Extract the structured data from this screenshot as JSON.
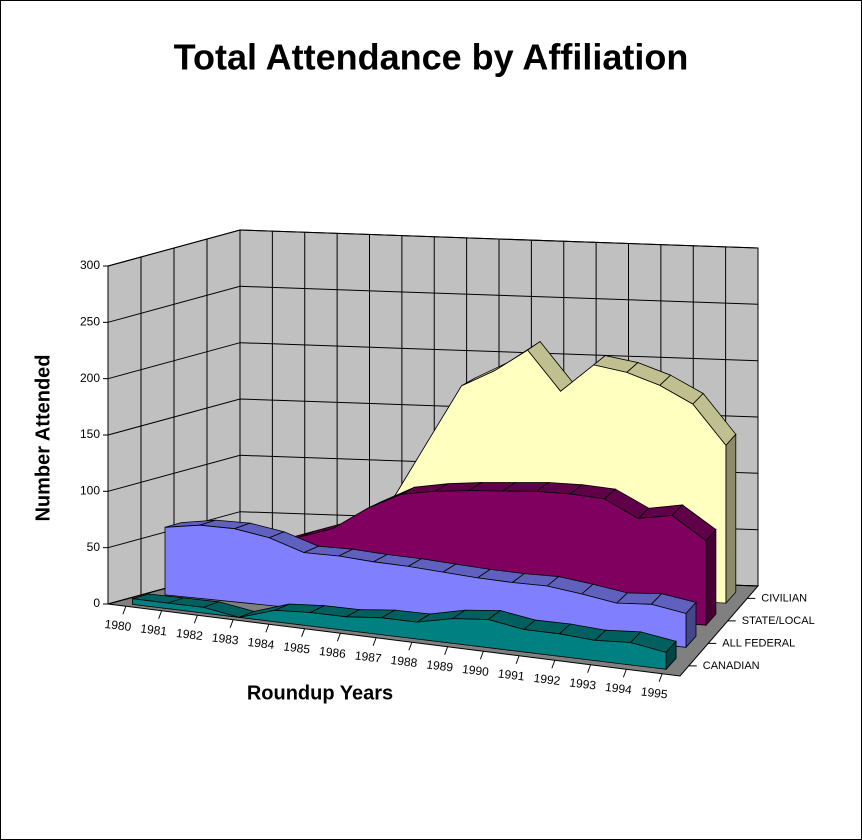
{
  "chart_data": {
    "type": "area3d",
    "title": "Total Attendance by Affiliation",
    "y_axis_label": "Number Attended",
    "x_axis_label": "Roundup Years",
    "categories": [
      "1980",
      "1981",
      "1982",
      "1983",
      "1984",
      "1985",
      "1986",
      "1987",
      "1988",
      "1989",
      "1990",
      "1991",
      "1992",
      "1993",
      "1994",
      "1995"
    ],
    "series": [
      {
        "name": "CANADIAN",
        "color": "#008080",
        "values": [
          5,
          5,
          5,
          0,
          10,
          12,
          12,
          15,
          15,
          22,
          25,
          20,
          20,
          18,
          20,
          15
        ]
      },
      {
        "name": "ALL FEDERAL",
        "color": "#8080ff",
        "values": [
          60,
          65,
          65,
          60,
          50,
          50,
          48,
          47,
          45,
          43,
          42,
          42,
          38,
          33,
          35,
          30
        ]
      },
      {
        "name": "STATE/LOCAL",
        "color": "#800060",
        "values": [
          20,
          30,
          40,
          50,
          60,
          80,
          95,
          100,
          103,
          105,
          107,
          107,
          105,
          90,
          95,
          75
        ]
      },
      {
        "name": "CIVILIAN",
        "color": "#ffffc0",
        "values": [
          10,
          20,
          30,
          40,
          50,
          80,
          130,
          180,
          195,
          215,
          180,
          205,
          200,
          190,
          175,
          140
        ]
      }
    ],
    "ylim": [
      0,
      300
    ],
    "yticks": [
      0,
      50,
      100,
      150,
      200,
      250,
      300
    ],
    "grid": true
  }
}
